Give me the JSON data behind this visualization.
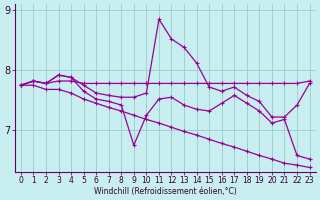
{
  "xlabel": "Windchill (Refroidissement éolien,°C)",
  "x": [
    0,
    1,
    2,
    3,
    4,
    5,
    6,
    7,
    8,
    9,
    10,
    11,
    12,
    13,
    14,
    15,
    16,
    17,
    18,
    19,
    20,
    21,
    22,
    23
  ],
  "line_flat": [
    7.75,
    7.82,
    7.78,
    7.82,
    7.82,
    7.78,
    7.78,
    7.78,
    7.78,
    7.78,
    7.78,
    7.78,
    7.78,
    7.78,
    7.78,
    7.78,
    7.78,
    7.78,
    7.78,
    7.78,
    7.78,
    7.78,
    7.78,
    7.82
  ],
  "line_spiky": [
    7.75,
    7.82,
    7.78,
    7.92,
    7.88,
    7.75,
    7.62,
    7.58,
    7.55,
    7.55,
    7.62,
    8.85,
    8.52,
    8.38,
    8.12,
    7.72,
    7.65,
    7.72,
    7.58,
    7.48,
    7.22,
    7.22,
    7.42,
    7.78
  ],
  "line_jagged": [
    7.75,
    7.82,
    7.78,
    7.92,
    7.88,
    7.65,
    7.52,
    7.48,
    7.42,
    6.75,
    7.25,
    7.52,
    7.55,
    7.42,
    7.35,
    7.32,
    7.45,
    7.58,
    7.45,
    7.32,
    7.12,
    7.18,
    6.58,
    6.52
  ],
  "line_diag": [
    7.75,
    7.75,
    7.68,
    7.68,
    7.62,
    7.52,
    7.45,
    7.38,
    7.32,
    7.25,
    7.18,
    7.12,
    7.05,
    6.98,
    6.92,
    6.85,
    6.78,
    6.72,
    6.65,
    6.58,
    6.52,
    6.45,
    6.42,
    6.38
  ],
  "color": "#990099",
  "bg_color": "#c8eef0",
  "grid_color": "#99cccc",
  "ylim": [
    6.3,
    9.1
  ],
  "yticks": [
    7,
    8,
    9
  ],
  "xticks": [
    0,
    1,
    2,
    3,
    4,
    5,
    6,
    7,
    8,
    9,
    10,
    11,
    12,
    13,
    14,
    15,
    16,
    17,
    18,
    19,
    20,
    21,
    22,
    23
  ],
  "tick_fontsize": 5.5,
  "xlabel_fontsize": 5.5
}
